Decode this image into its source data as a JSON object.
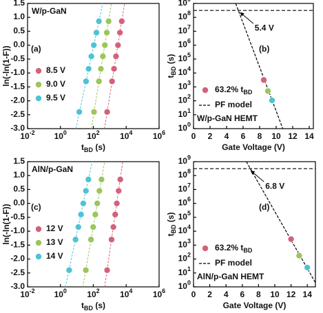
{
  "chart_data": [
    {
      "type": "weibull",
      "panel_label": "(a)",
      "tag": "W/p-GaN",
      "xlabel": {
        "main": "t",
        "sub": "BD",
        "rest": " (s)"
      },
      "ylabel": "ln(-ln(1-F))",
      "xscale": "log",
      "xlim": [
        0.01,
        1000000
      ],
      "xticks": [
        {
          "value": 0.01,
          "label": {
            "base": "10",
            "exp": "-2"
          }
        },
        {
          "value": 1,
          "label": {
            "base": "10",
            "exp": "0"
          }
        },
        {
          "value": 100,
          "label": {
            "base": "10",
            "exp": "2"
          }
        },
        {
          "value": 10000,
          "label": {
            "base": "10",
            "exp": "4"
          }
        },
        {
          "value": 1000000,
          "label": {
            "base": "10",
            "exp": "6"
          }
        }
      ],
      "ylim": [
        -3,
        1.5
      ],
      "yticks": [
        {
          "value": -3,
          "label": "-3.0"
        },
        -2.5,
        {
          "value": -2,
          "label": "-2.0"
        },
        -1.5,
        {
          "value": -1,
          "label": "-1.0"
        },
        -0.5,
        {
          "value": 0,
          "label": "0.0"
        },
        0.5,
        {
          "value": 1,
          "label": "1.0"
        },
        1.5
      ],
      "series": [
        {
          "name": "8.5 V",
          "color": "#d4617b",
          "x": [
            692,
            1380,
            1820,
            2400,
            3160,
            4170,
            5370
          ],
          "y": [
            -2.4,
            -1.3,
            -0.85,
            -0.4,
            0,
            0.45,
            0.86
          ],
          "fit": {
            "x": [
              479,
              7940
            ],
            "y": [
              -3,
              1.5
            ]
          }
        },
        {
          "name": "9.0 V",
          "color": "#9cc55a",
          "x": [
            110,
            219,
            288,
            380,
            501,
            661,
            851
          ],
          "y": [
            -2.4,
            -1.3,
            -0.85,
            -0.4,
            0,
            0.45,
            0.86
          ],
          "fit": {
            "x": [
              76,
              1260
            ],
            "y": [
              -3,
              1.5
            ]
          }
        },
        {
          "name": "9.5 V",
          "color": "#4ec3d3",
          "x": [
            14,
            36,
            52,
            76,
            107,
            155,
            219
          ],
          "y": [
            -2.4,
            -1.3,
            -0.85,
            -0.4,
            0,
            0.45,
            0.86
          ],
          "fit": {
            "x": [
              8.7,
              372
            ],
            "y": [
              -3,
              1.5
            ]
          }
        }
      ]
    },
    {
      "type": "lifetime",
      "panel_label": "(b)",
      "device": "W/p-GaN HEMT",
      "xlabel": "Gate Voltage (V)",
      "ylabel": {
        "main": "t",
        "sub": "BD",
        "rest": " (s)"
      },
      "xlim": [
        0,
        14.5
      ],
      "xticks": [
        0,
        2,
        4,
        6,
        8,
        10,
        12,
        14
      ],
      "yscale": "log",
      "ylim": [
        1,
        1000000000
      ],
      "yticks": [
        {
          "value": 1,
          "label": {
            "base": "10",
            "exp": "0"
          }
        },
        {
          "value": 10,
          "label": {
            "base": "10",
            "exp": "1"
          }
        },
        {
          "value": 100,
          "label": {
            "base": "10",
            "exp": "2"
          }
        },
        {
          "value": 1000,
          "label": {
            "base": "10",
            "exp": "3"
          }
        },
        {
          "value": 10000,
          "label": {
            "base": "10",
            "exp": "4"
          }
        },
        {
          "value": 100000,
          "label": {
            "base": "10",
            "exp": "5"
          }
        },
        {
          "value": 1000000,
          "label": {
            "base": "10",
            "exp": "6"
          }
        },
        {
          "value": 10000000,
          "label": {
            "base": "10",
            "exp": "7"
          }
        },
        {
          "value": 100000000,
          "label": {
            "base": "10",
            "exp": "8"
          }
        },
        {
          "value": 1000000000,
          "label": {
            "base": "10",
            "exp": "9"
          }
        }
      ],
      "series": [
        {
          "name": {
            "main": "63.2% t",
            "sub": "BD"
          },
          "color": "#d4617b",
          "x": [
            8.5,
            9,
            9.5
          ],
          "y": [
            3160,
            501,
            107
          ],
          "colors": [
            "#d4617b",
            "#9cc55a",
            "#4ec3d3"
          ]
        }
      ],
      "pf_model": {
        "name": "PF model",
        "x": [
          5.1,
          10.8
        ],
        "y": [
          1000000000,
          1
        ]
      },
      "reference_y": 315000000,
      "annotation": {
        "text": "5.4 V",
        "x": 5.4,
        "y": 315000000
      }
    },
    {
      "type": "weibull",
      "panel_label": "(c)",
      "tag": "AlN/p-GaN",
      "xlabel": {
        "main": "t",
        "sub": "BD",
        "rest": " (s)"
      },
      "ylabel": "ln(-ln(1-F))",
      "xscale": "log",
      "xlim": [
        0.01,
        1000000
      ],
      "xticks": [
        {
          "value": 0.01,
          "label": {
            "base": "10",
            "exp": "-2"
          }
        },
        {
          "value": 1,
          "label": {
            "base": "10",
            "exp": "0"
          }
        },
        {
          "value": 100,
          "label": {
            "base": "10",
            "exp": "2"
          }
        },
        {
          "value": 10000,
          "label": {
            "base": "10",
            "exp": "4"
          }
        },
        {
          "value": 1000000,
          "label": {
            "base": "10",
            "exp": "6"
          }
        }
      ],
      "ylim": [
        -3,
        1.5
      ],
      "yticks": [
        {
          "value": -3,
          "label": "-3.0"
        },
        -2.5,
        {
          "value": -2,
          "label": "-2.0"
        },
        -1.5,
        {
          "value": -1,
          "label": "-1.0"
        },
        -0.5,
        {
          "value": 0,
          "label": "0.0"
        },
        0.5,
        {
          "value": 1,
          "label": "1.0"
        },
        1.5
      ],
      "series": [
        {
          "name": "12 V",
          "color": "#d4617b",
          "x": [
            692,
            1290,
            1660,
            2140,
            2690,
            3470,
            4370
          ],
          "y": [
            -2.4,
            -1.3,
            -0.85,
            -0.4,
            0,
            0.45,
            0.86
          ],
          "fit": {
            "x": [
              490,
              6170
            ],
            "y": [
              -3,
              1.5
            ]
          }
        },
        {
          "name": "13 V",
          "color": "#9cc55a",
          "x": [
            35,
            72,
            98,
            132,
            174,
            234,
            316
          ],
          "y": [
            -2.4,
            -1.3,
            -0.85,
            -0.4,
            0,
            0.45,
            0.86
          ],
          "fit": {
            "x": [
              23,
              490
            ],
            "y": [
              -3,
              1.5
            ]
          }
        },
        {
          "name": "14 V",
          "color": "#4ec3d3",
          "x": [
            3.4,
            8.3,
            12.3,
            17.8,
            24.5,
            35.5,
            50.1
          ],
          "y": [
            -2.4,
            -1.3,
            -0.85,
            -0.4,
            0,
            0.45,
            0.86
          ],
          "fit": {
            "x": [
              2,
              85
            ],
            "y": [
              -3,
              1.5
            ]
          }
        }
      ]
    },
    {
      "type": "lifetime",
      "panel_label": "(d)",
      "device": "AlN/p-GaN HEMT",
      "xlabel": "Gate Voltage (V)",
      "ylabel": {
        "main": "t",
        "sub": "BD",
        "rest": " (s)"
      },
      "xlim": [
        0,
        15
      ],
      "xticks": [
        0,
        2,
        4,
        6,
        8,
        10,
        12,
        14
      ],
      "yscale": "log",
      "ylim": [
        1,
        1000000000
      ],
      "yticks": [
        {
          "value": 1,
          "label": {
            "base": "10",
            "exp": "0"
          }
        },
        {
          "value": 10,
          "label": {
            "base": "10",
            "exp": "1"
          }
        },
        {
          "value": 100,
          "label": {
            "base": "10",
            "exp": "2"
          }
        },
        {
          "value": 1000,
          "label": {
            "base": "10",
            "exp": "3"
          }
        },
        {
          "value": 10000,
          "label": {
            "base": "10",
            "exp": "4"
          }
        },
        {
          "value": 100000,
          "label": {
            "base": "10",
            "exp": "5"
          }
        },
        {
          "value": 1000000,
          "label": {
            "base": "10",
            "exp": "6"
          }
        },
        {
          "value": 10000000,
          "label": {
            "base": "10",
            "exp": "7"
          }
        },
        {
          "value": 100000000,
          "label": {
            "base": "10",
            "exp": "8"
          }
        },
        {
          "value": 1000000000,
          "label": {
            "base": "10",
            "exp": "9"
          }
        }
      ],
      "series": [
        {
          "name": {
            "main": "63.2% t",
            "sub": "BD"
          },
          "color": "#d4617b",
          "x": [
            12,
            13,
            14
          ],
          "y": [
            2690,
            174,
            24.5
          ],
          "colors": [
            "#d4617b",
            "#9cc55a",
            "#4ec3d3"
          ]
        }
      ],
      "pf_model": {
        "name": "PF model",
        "x": [
          6.5,
          15
        ],
        "y": [
          1000000000,
          2
        ]
      },
      "reference_y": 315000000,
      "annotation": {
        "text": "6.8 V",
        "x": 6.8,
        "y": 315000000
      }
    }
  ]
}
